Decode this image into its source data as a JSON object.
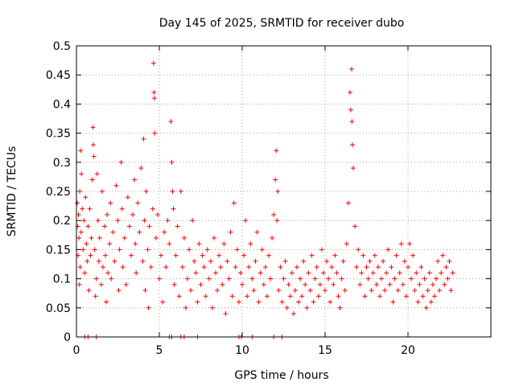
{
  "chart_data": {
    "type": "scatter",
    "title": "Day 145 of 2025, SRMTID for receiver dubo",
    "xlabel": "GPS time / hours",
    "ylabel": "SRMTID / TECUs",
    "xlim": [
      0,
      25
    ],
    "ylim": [
      0,
      0.5
    ],
    "xticks": [
      0,
      5,
      10,
      15,
      20
    ],
    "xtick_labels": [
      "0",
      "5",
      "10",
      "15",
      "20"
    ],
    "yticks": [
      0,
      0.05,
      0.1,
      0.15,
      0.2,
      0.25,
      0.3,
      0.35,
      0.4,
      0.45,
      0.5
    ],
    "ytick_labels": [
      "0",
      "0.05",
      "0.1",
      "0.15",
      "0.2",
      "0.25",
      "0.3",
      "0.35",
      "0.4",
      "0.45",
      "0.5"
    ],
    "grid": true,
    "marker": "+",
    "marker_color": "#ff0000",
    "series": [
      {
        "name": "SRMTID",
        "note": "approximate representative sample of the visible scatter",
        "points": [
          [
            0.05,
            0.23
          ],
          [
            0.08,
            0.19
          ],
          [
            0.1,
            0.14
          ],
          [
            0.12,
            0.21
          ],
          [
            0.15,
            0.17
          ],
          [
            0.18,
            0.09
          ],
          [
            0.2,
            0.25
          ],
          [
            0.22,
            0.12
          ],
          [
            0.25,
            0.32
          ],
          [
            0.28,
            0.18
          ],
          [
            0.3,
            0.28
          ],
          [
            0.35,
            0.22
          ],
          [
            0.4,
            0.15
          ],
          [
            0.45,
            0.2
          ],
          [
            0.5,
            0.11
          ],
          [
            0.55,
            0.24
          ],
          [
            0.6,
            0.16
          ],
          [
            0.65,
            0.13
          ],
          [
            0.7,
            0.19
          ],
          [
            0.75,
            0.08
          ],
          [
            0.8,
            0.22
          ],
          [
            0.85,
            0.14
          ],
          [
            0.9,
            0.17
          ],
          [
            0.95,
            0.27
          ],
          [
            1.0,
            0.36
          ],
          [
            1.02,
            0.33
          ],
          [
            1.05,
            0.31
          ],
          [
            1.1,
            0.15
          ],
          [
            1.15,
            0.07
          ],
          [
            1.2,
            0.1
          ],
          [
            1.25,
            0.28
          ],
          [
            1.3,
            0.2
          ],
          [
            1.35,
            0.13
          ],
          [
            1.4,
            0.17
          ],
          [
            1.5,
            0.09
          ],
          [
            1.55,
            0.25
          ],
          [
            1.6,
            0.12
          ],
          [
            1.7,
            0.19
          ],
          [
            1.75,
            0.14
          ],
          [
            1.8,
            0.06
          ],
          [
            1.85,
            0.21
          ],
          [
            1.9,
            0.11
          ],
          [
            2.0,
            0.16
          ],
          [
            2.05,
            0.23
          ],
          [
            2.1,
            0.1
          ],
          [
            2.2,
            0.18
          ],
          [
            2.3,
            0.13
          ],
          [
            2.4,
            0.26
          ],
          [
            2.5,
            0.2
          ],
          [
            2.55,
            0.08
          ],
          [
            2.6,
            0.15
          ],
          [
            2.7,
            0.3
          ],
          [
            2.75,
            0.22
          ],
          [
            2.8,
            0.12
          ],
          [
            2.9,
            0.17
          ],
          [
            3.0,
            0.09
          ],
          [
            3.1,
            0.24
          ],
          [
            3.2,
            0.19
          ],
          [
            3.3,
            0.14
          ],
          [
            3.4,
            0.21
          ],
          [
            3.5,
            0.27
          ],
          [
            3.55,
            0.16
          ],
          [
            3.6,
            0.11
          ],
          [
            3.7,
            0.23
          ],
          [
            3.8,
            0.18
          ],
          [
            3.9,
            0.29
          ],
          [
            4.0,
            0.13
          ],
          [
            4.05,
            0.34
          ],
          [
            4.1,
            0.2
          ],
          [
            4.15,
            0.08
          ],
          [
            4.2,
            0.25
          ],
          [
            4.3,
            0.15
          ],
          [
            4.35,
            0.05
          ],
          [
            4.4,
            0.19
          ],
          [
            4.5,
            0.12
          ],
          [
            4.6,
            0.22
          ],
          [
            4.65,
            0.47
          ],
          [
            4.68,
            0.42
          ],
          [
            4.7,
            0.41
          ],
          [
            4.72,
            0.35
          ],
          [
            4.8,
            0.17
          ],
          [
            4.9,
            0.21
          ],
          [
            5.0,
            0.1
          ],
          [
            5.1,
            0.14
          ],
          [
            5.2,
            0.06
          ],
          [
            5.3,
            0.18
          ],
          [
            5.4,
            0.12
          ],
          [
            5.5,
            0.2
          ],
          [
            5.6,
            0.16
          ],
          [
            5.7,
            0.37
          ],
          [
            5.75,
            0.3
          ],
          [
            5.8,
            0.25
          ],
          [
            5.85,
            0.22
          ],
          [
            5.9,
            0.09
          ],
          [
            6.0,
            0.14
          ],
          [
            6.1,
            0.19
          ],
          [
            6.2,
            0.07
          ],
          [
            6.3,
            0.25
          ],
          [
            6.4,
            0.12
          ],
          [
            6.5,
            0.17
          ],
          [
            6.6,
            0.05
          ],
          [
            6.7,
            0.1
          ],
          [
            6.8,
            0.15
          ],
          [
            6.9,
            0.08
          ],
          [
            7.0,
            0.2
          ],
          [
            7.1,
            0.13
          ],
          [
            7.2,
            0.11
          ],
          [
            7.3,
            0.06
          ],
          [
            7.4,
            0.16
          ],
          [
            7.5,
            0.09
          ],
          [
            7.6,
            0.14
          ],
          [
            7.7,
            0.12
          ],
          [
            7.8,
            0.07
          ],
          [
            7.9,
            0.15
          ],
          [
            8.0,
            0.1
          ],
          [
            8.1,
            0.13
          ],
          [
            8.2,
            0.05
          ],
          [
            8.3,
            0.17
          ],
          [
            8.4,
            0.11
          ],
          [
            8.5,
            0.08
          ],
          [
            8.6,
            0.14
          ],
          [
            8.7,
            0.12
          ],
          [
            8.8,
            0.09
          ],
          [
            8.9,
            0.16
          ],
          [
            9.0,
            0.04
          ],
          [
            9.1,
            0.13
          ],
          [
            9.2,
            0.1
          ],
          [
            9.3,
            0.18
          ],
          [
            9.4,
            0.07
          ],
          [
            9.5,
            0.23
          ],
          [
            9.6,
            0.12
          ],
          [
            9.7,
            0.15
          ],
          [
            9.8,
            0.06
          ],
          [
            9.9,
            0.11
          ],
          [
            10.0,
            0.09
          ],
          [
            10.1,
            0.14
          ],
          [
            10.2,
            0.2
          ],
          [
            10.3,
            0.07
          ],
          [
            10.4,
            0.12
          ],
          [
            10.5,
            0.16
          ],
          [
            10.6,
            0.1
          ],
          [
            10.7,
            0.08
          ],
          [
            10.8,
            0.13
          ],
          [
            10.9,
            0.18
          ],
          [
            11.0,
            0.06
          ],
          [
            11.1,
            0.11
          ],
          [
            11.2,
            0.15
          ],
          [
            11.3,
            0.09
          ],
          [
            11.4,
            0.12
          ],
          [
            11.5,
            0.07
          ],
          [
            11.6,
            0.14
          ],
          [
            11.7,
            0.1
          ],
          [
            11.8,
            0.17
          ],
          [
            11.9,
            0.21
          ],
          [
            12.0,
            0.27
          ],
          [
            12.05,
            0.32
          ],
          [
            12.1,
            0.2
          ],
          [
            12.15,
            0.25
          ],
          [
            12.2,
            0.08
          ],
          [
            12.3,
            0.12
          ],
          [
            12.4,
            0.06
          ],
          [
            12.5,
            0.1
          ],
          [
            12.6,
            0.13
          ],
          [
            12.7,
            0.05
          ],
          [
            12.8,
            0.09
          ],
          [
            12.9,
            0.07
          ],
          [
            13.0,
            0.11
          ],
          [
            13.1,
            0.04
          ],
          [
            13.2,
            0.08
          ],
          [
            13.3,
            0.12
          ],
          [
            13.4,
            0.06
          ],
          [
            13.5,
            0.1
          ],
          [
            13.6,
            0.07
          ],
          [
            13.7,
            0.13
          ],
          [
            13.8,
            0.09
          ],
          [
            13.9,
            0.05
          ],
          [
            14.0,
            0.11
          ],
          [
            14.1,
            0.08
          ],
          [
            14.2,
            0.14
          ],
          [
            14.3,
            0.06
          ],
          [
            14.4,
            0.1
          ],
          [
            14.5,
            0.12
          ],
          [
            14.6,
            0.07
          ],
          [
            14.7,
            0.09
          ],
          [
            14.8,
            0.15
          ],
          [
            14.9,
            0.11
          ],
          [
            15.0,
            0.08
          ],
          [
            15.1,
            0.13
          ],
          [
            15.2,
            0.1
          ],
          [
            15.3,
            0.06
          ],
          [
            15.4,
            0.12
          ],
          [
            15.5,
            0.09
          ],
          [
            15.6,
            0.14
          ],
          [
            15.7,
            0.11
          ],
          [
            15.8,
            0.07
          ],
          [
            15.9,
            0.05
          ],
          [
            16.0,
            0.1
          ],
          [
            16.1,
            0.13
          ],
          [
            16.2,
            0.08
          ],
          [
            16.3,
            0.16
          ],
          [
            16.4,
            0.23
          ],
          [
            16.5,
            0.42
          ],
          [
            16.55,
            0.39
          ],
          [
            16.6,
            0.46
          ],
          [
            16.62,
            0.37
          ],
          [
            16.65,
            0.33
          ],
          [
            16.7,
            0.29
          ],
          [
            16.8,
            0.19
          ],
          [
            16.9,
            0.12
          ],
          [
            17.0,
            0.15
          ],
          [
            17.1,
            0.09
          ],
          [
            17.2,
            0.11
          ],
          [
            17.3,
            0.14
          ],
          [
            17.4,
            0.07
          ],
          [
            17.5,
            0.12
          ],
          [
            17.6,
            0.1
          ],
          [
            17.7,
            0.13
          ],
          [
            17.8,
            0.08
          ],
          [
            17.9,
            0.11
          ],
          [
            18.0,
            0.14
          ],
          [
            18.1,
            0.09
          ],
          [
            18.2,
            0.12
          ],
          [
            18.3,
            0.07
          ],
          [
            18.4,
            0.1
          ],
          [
            18.5,
            0.13
          ],
          [
            18.6,
            0.08
          ],
          [
            18.7,
            0.11
          ],
          [
            18.8,
            0.15
          ],
          [
            18.9,
            0.09
          ],
          [
            19.0,
            0.12
          ],
          [
            19.1,
            0.06
          ],
          [
            19.2,
            0.1
          ],
          [
            19.3,
            0.14
          ],
          [
            19.4,
            0.08
          ],
          [
            19.5,
            0.11
          ],
          [
            19.6,
            0.16
          ],
          [
            19.7,
            0.09
          ],
          [
            19.8,
            0.13
          ],
          [
            19.9,
            0.07
          ],
          [
            20.0,
            0.12
          ],
          [
            20.1,
            0.16
          ],
          [
            20.2,
            0.1
          ],
          [
            20.3,
            0.14
          ],
          [
            20.4,
            0.08
          ],
          [
            20.5,
            0.11
          ],
          [
            20.6,
            0.06
          ],
          [
            20.7,
            0.09
          ],
          [
            20.8,
            0.12
          ],
          [
            20.9,
            0.07
          ],
          [
            21.0,
            0.1
          ],
          [
            21.1,
            0.05
          ],
          [
            21.2,
            0.08
          ],
          [
            21.3,
            0.11
          ],
          [
            21.4,
            0.06
          ],
          [
            21.5,
            0.09
          ],
          [
            21.6,
            0.07
          ],
          [
            21.7,
            0.1
          ],
          [
            21.8,
            0.13
          ],
          [
            21.9,
            0.08
          ],
          [
            22.0,
            0.11
          ],
          [
            22.1,
            0.14
          ],
          [
            22.2,
            0.09
          ],
          [
            22.3,
            0.12
          ],
          [
            22.4,
            0.1
          ],
          [
            22.5,
            0.13
          ],
          [
            22.6,
            0.08
          ],
          [
            22.7,
            0.11
          ]
        ]
      }
    ],
    "baseline_markers_x": [
      0.5,
      0.7,
      1.2,
      5.6,
      5.75,
      6.3,
      6.5,
      7.3,
      9.8,
      9.95,
      10.6,
      11.9,
      12.4
    ]
  }
}
